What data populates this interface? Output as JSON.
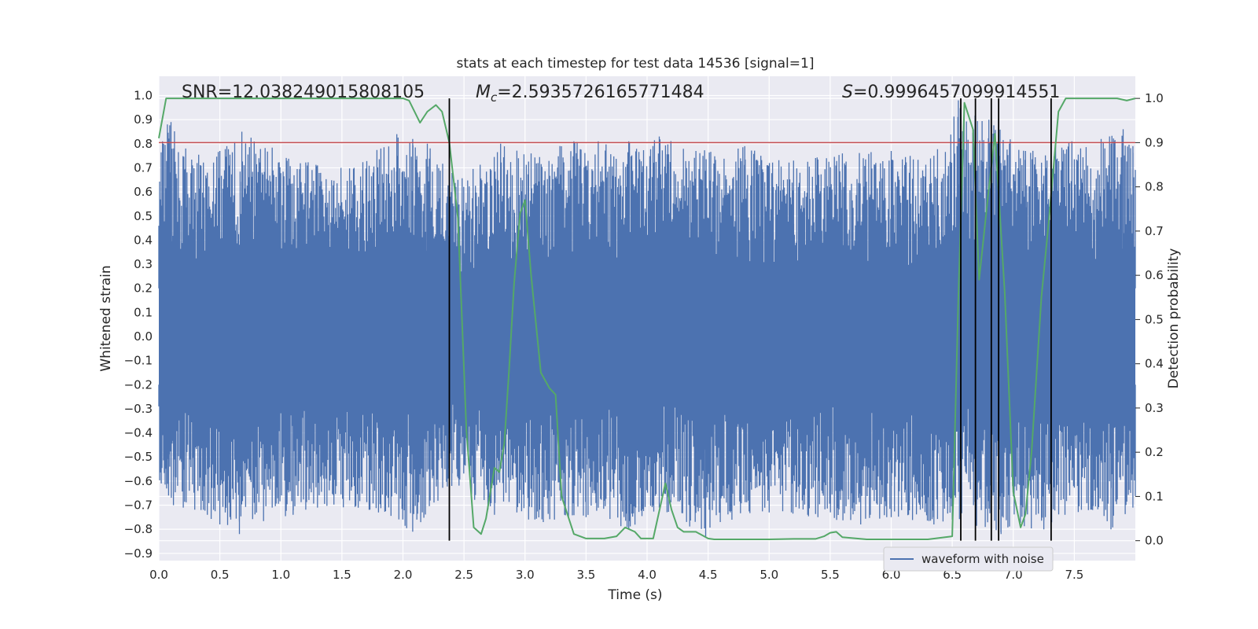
{
  "chart_data": {
    "type": "line",
    "title": "stats at each timestep for test data 14536 [signal=1]",
    "xlabel": "Time (s)",
    "ylabel": "Whitened strain",
    "y2label": "Detection probability",
    "xlim": [
      0.0,
      8.0
    ],
    "ylim": [
      -0.93,
      1.08
    ],
    "y2lim": [
      -0.045,
      1.05
    ],
    "xticks": [
      0.0,
      0.5,
      1.0,
      1.5,
      2.0,
      2.5,
      3.0,
      3.5,
      4.0,
      4.5,
      5.0,
      5.5,
      6.0,
      6.5,
      7.0,
      7.5
    ],
    "xtick_labels": [
      "0.0",
      "0.5",
      "1.0",
      "1.5",
      "2.0",
      "2.5",
      "3.0",
      "3.5",
      "4.0",
      "4.5",
      "5.0",
      "5.5",
      "6.0",
      "6.5",
      "7.0",
      "7.5"
    ],
    "yticks": [
      1.0,
      0.9,
      0.8,
      0.7,
      0.6,
      0.5,
      0.4,
      0.3,
      0.2,
      0.1,
      0.0,
      -0.1,
      -0.2,
      -0.3,
      -0.4,
      -0.5,
      -0.6,
      -0.7,
      -0.8,
      -0.9
    ],
    "ytick_labels": [
      "1.0",
      "0.9",
      "0.8",
      "0.7",
      "0.6",
      "0.5",
      "0.4",
      "0.3",
      "0.2",
      "0.1",
      "0.0",
      "−0.1",
      "−0.2",
      "−0.3",
      "−0.4",
      "−0.5",
      "−0.6",
      "−0.7",
      "−0.8",
      "−0.9"
    ],
    "y2ticks": [
      1.0,
      0.9,
      0.8,
      0.7,
      0.6,
      0.5,
      0.4,
      0.3,
      0.2,
      0.1,
      0.0
    ],
    "y2tick_labels": [
      "1.0",
      "0.9",
      "0.8",
      "0.7",
      "0.6",
      "0.5",
      "0.4",
      "0.3",
      "0.2",
      "0.1",
      "0.0"
    ],
    "grid": true,
    "legend": {
      "location": "bottom-right",
      "entries": [
        {
          "label": "waveform with noise",
          "color": "#4c72b0"
        }
      ]
    },
    "annotations": {
      "snr": "SNR=12.038249015808105",
      "mc_symbol": "M",
      "mc_subscript": "c",
      "mc_value": "=2.5935726165771484",
      "s_symbol": "S",
      "s_value": "=0.9996457099914551"
    },
    "colors": {
      "waveform": "#4c72b0",
      "probability": "#55a868",
      "threshold": "#c44e52",
      "markers": "#000000",
      "axes_bg": "#eaeaf2",
      "grid": "#ffffff"
    },
    "series": [
      {
        "name": "waveform with noise",
        "axis": "left",
        "style": "dense noisy strain, core band ±0.26",
        "t_range": [
          0.0,
          8.0
        ],
        "core_band": [
          -0.27,
          0.27
        ],
        "upper_peaks": [
          [
            0.03,
            0.81
          ],
          [
            0.07,
            0.88
          ],
          [
            0.1,
            0.89
          ],
          [
            0.22,
            0.78
          ],
          [
            0.5,
            0.77
          ],
          [
            0.68,
            0.85
          ],
          [
            1.3,
            0.71
          ],
          [
            1.6,
            0.7
          ],
          [
            1.95,
            0.84
          ],
          [
            2.08,
            0.82
          ],
          [
            2.2,
            0.8
          ],
          [
            2.45,
            0.65
          ],
          [
            2.8,
            0.8
          ],
          [
            3.05,
            0.76
          ],
          [
            3.4,
            0.81
          ],
          [
            3.6,
            0.81
          ],
          [
            3.85,
            0.81
          ],
          [
            4.1,
            0.83
          ],
          [
            4.4,
            0.77
          ],
          [
            4.8,
            0.79
          ],
          [
            5.2,
            0.73
          ],
          [
            5.6,
            0.76
          ],
          [
            6.0,
            0.77
          ],
          [
            6.35,
            0.75
          ],
          [
            6.55,
            0.98
          ],
          [
            6.8,
            0.9
          ],
          [
            7.1,
            0.77
          ],
          [
            7.48,
            0.81
          ],
          [
            7.72,
            0.82
          ],
          [
            7.9,
            0.86
          ],
          [
            7.98,
            0.79
          ]
        ],
        "lower_peaks": [
          [
            0.02,
            -0.61
          ],
          [
            0.08,
            -0.66
          ],
          [
            0.12,
            -0.7
          ],
          [
            0.2,
            -0.71
          ],
          [
            0.5,
            -0.78
          ],
          [
            0.66,
            -0.82
          ],
          [
            1.1,
            -0.74
          ],
          [
            1.3,
            -0.71
          ],
          [
            1.8,
            -0.73
          ],
          [
            2.08,
            -0.81
          ],
          [
            2.4,
            -0.62
          ],
          [
            2.75,
            -0.74
          ],
          [
            3.15,
            -0.77
          ],
          [
            3.5,
            -0.75
          ],
          [
            3.85,
            -0.8
          ],
          [
            4.1,
            -0.71
          ],
          [
            4.48,
            -0.83
          ],
          [
            4.6,
            -0.77
          ],
          [
            5.0,
            -0.73
          ],
          [
            5.4,
            -0.75
          ],
          [
            5.75,
            -0.78
          ],
          [
            6.0,
            -0.75
          ],
          [
            6.35,
            -0.78
          ],
          [
            6.5,
            -0.76
          ],
          [
            6.9,
            -0.82
          ],
          [
            7.25,
            -0.8
          ],
          [
            7.65,
            -0.72
          ],
          [
            7.8,
            -0.8
          ],
          [
            7.98,
            -0.71
          ]
        ]
      },
      {
        "name": "detection probability",
        "axis": "right",
        "x": [
          0.0,
          0.06,
          0.3,
          1.0,
          1.5,
          2.0,
          2.05,
          2.14,
          2.2,
          2.27,
          2.32,
          2.38,
          2.45,
          2.52,
          2.58,
          2.64,
          2.68,
          2.75,
          2.79,
          2.83,
          2.87,
          2.91,
          2.96,
          3.0,
          3.05,
          3.13,
          3.2,
          3.25,
          3.3,
          3.4,
          3.5,
          3.65,
          3.75,
          3.82,
          3.9,
          3.95,
          4.05,
          4.15,
          4.2,
          4.25,
          4.3,
          4.4,
          4.5,
          4.55,
          4.75,
          5.0,
          5.2,
          5.38,
          5.45,
          5.5,
          5.55,
          5.6,
          5.8,
          6.0,
          6.3,
          6.5,
          6.55,
          6.6,
          6.67,
          6.72,
          6.79,
          6.85,
          6.93,
          7.0,
          7.06,
          7.1,
          7.15,
          7.23,
          7.29,
          7.37,
          7.43,
          7.55,
          7.7,
          7.85,
          7.93,
          8.0
        ],
        "y": [
          0.91,
          1.0,
          1.0,
          1.0,
          1.0,
          1.0,
          0.995,
          0.945,
          0.97,
          0.985,
          0.97,
          0.9,
          0.73,
          0.25,
          0.03,
          0.015,
          0.05,
          0.165,
          0.155,
          0.22,
          0.39,
          0.58,
          0.74,
          0.77,
          0.6,
          0.38,
          0.345,
          0.33,
          0.1,
          0.015,
          0.005,
          0.005,
          0.01,
          0.03,
          0.02,
          0.005,
          0.005,
          0.13,
          0.07,
          0.03,
          0.02,
          0.02,
          0.005,
          0.003,
          0.003,
          0.003,
          0.004,
          0.004,
          0.01,
          0.018,
          0.02,
          0.008,
          0.003,
          0.003,
          0.003,
          0.01,
          0.55,
          0.99,
          0.93,
          0.59,
          0.77,
          0.92,
          0.56,
          0.11,
          0.03,
          0.06,
          0.2,
          0.55,
          0.72,
          0.97,
          1.0,
          1.0,
          1.0,
          1.0,
          0.995,
          1.0
        ]
      }
    ],
    "threshold": {
      "axis": "right",
      "y": 0.9,
      "x_range": [
        0.0,
        8.0
      ]
    },
    "markers": {
      "x": [
        2.38,
        6.57,
        6.69,
        6.82,
        6.88,
        7.31
      ],
      "y_range": [
        0.0,
        1.0
      ],
      "axis": "right"
    }
  }
}
